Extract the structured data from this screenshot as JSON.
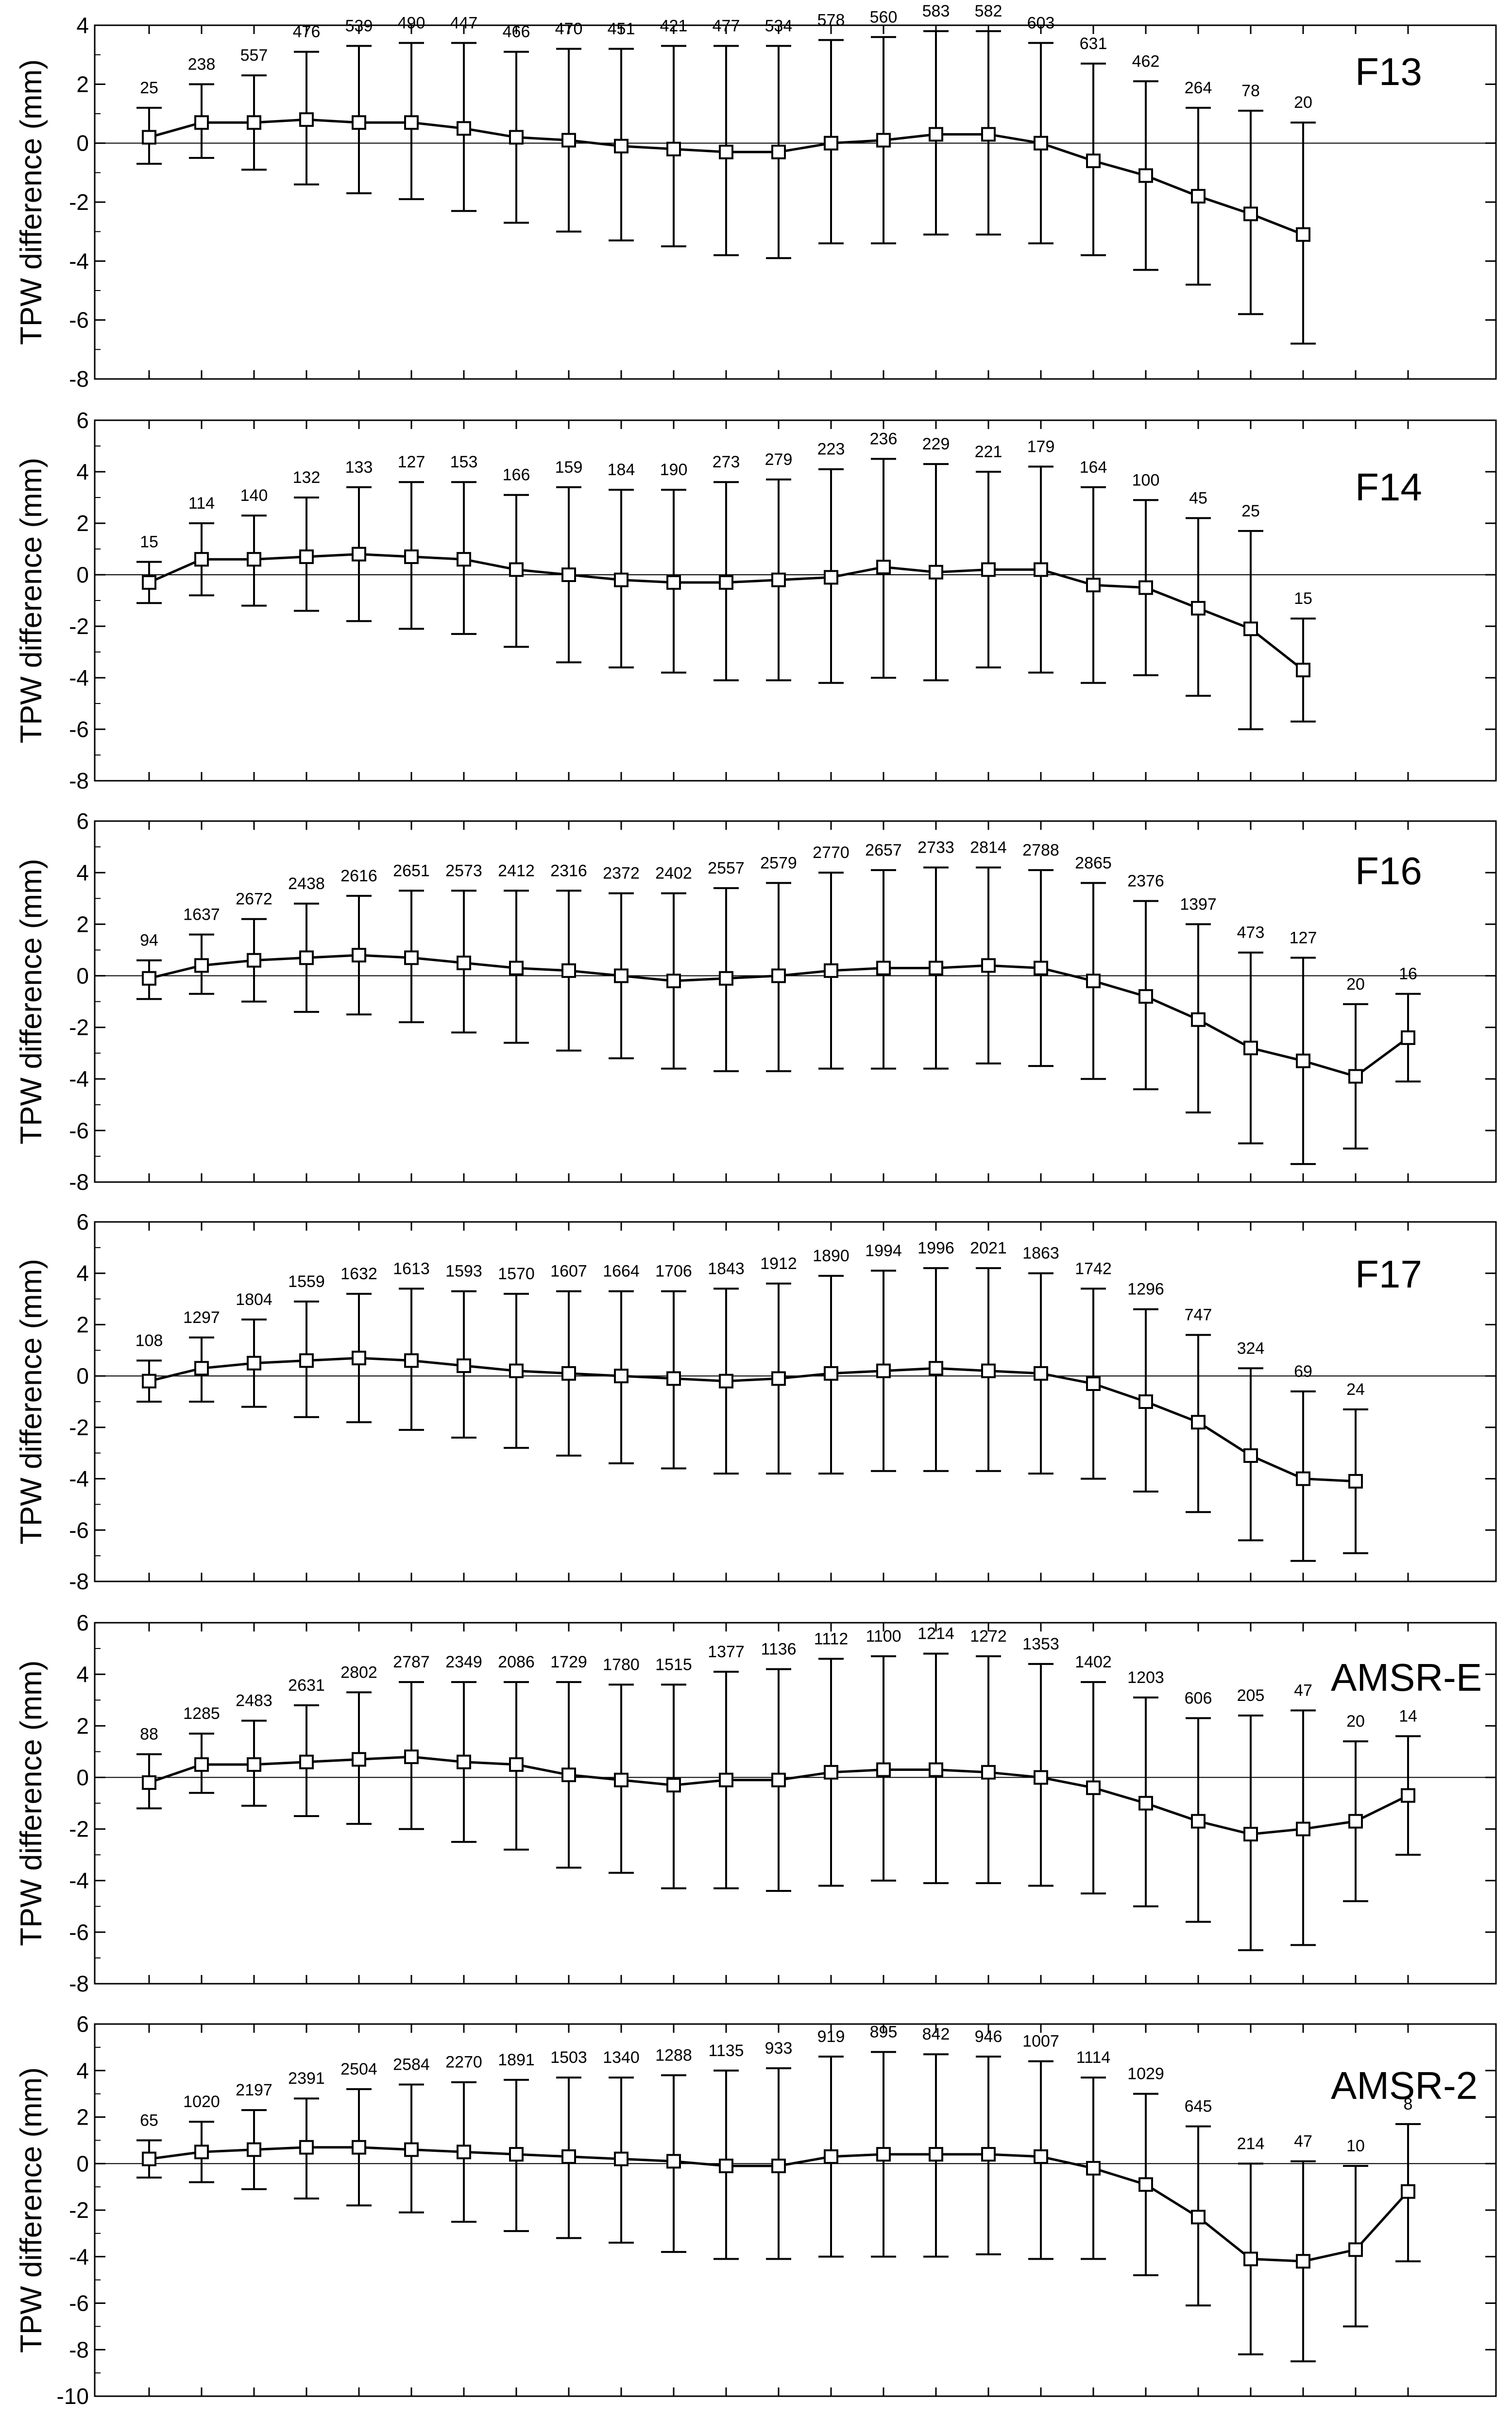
{
  "figure": {
    "ylabel": "TPW difference (mm)",
    "x_positions": [
      1,
      2,
      3,
      4,
      5,
      6,
      7,
      8,
      9,
      10,
      11,
      12,
      13,
      14,
      15,
      16,
      17,
      18,
      19,
      20,
      21,
      22,
      23,
      24,
      25
    ]
  },
  "chart_data": [
    {
      "type": "line",
      "title": "F13",
      "ylabel": "TPW difference (mm)",
      "ylim": [
        -8,
        4
      ],
      "yticks": [
        4,
        2,
        0,
        -2,
        -4,
        -6,
        -8
      ],
      "x": [
        1,
        2,
        3,
        4,
        5,
        6,
        7,
        8,
        9,
        10,
        11,
        12,
        13,
        14,
        15,
        16,
        17,
        18,
        19,
        20,
        21,
        22,
        23
      ],
      "values": [
        0.2,
        0.7,
        0.7,
        0.8,
        0.7,
        0.7,
        0.5,
        0.2,
        0.1,
        -0.1,
        -0.2,
        -0.3,
        -0.3,
        0.0,
        0.1,
        0.3,
        0.3,
        0.0,
        -0.6,
        -1.1,
        -1.8,
        -2.4,
        -3.1
      ],
      "lower": [
        -0.7,
        -0.5,
        -0.9,
        -1.4,
        -1.7,
        -1.9,
        -2.3,
        -2.7,
        -3.0,
        -3.3,
        -3.5,
        -3.8,
        -3.9,
        -3.4,
        -3.4,
        -3.1,
        -3.1,
        -3.4,
        -3.8,
        -4.3,
        -4.8,
        -5.8,
        -6.8
      ],
      "upper": [
        1.2,
        2.0,
        2.3,
        3.1,
        3.3,
        3.4,
        3.4,
        3.1,
        3.2,
        3.2,
        3.3,
        3.3,
        3.3,
        3.5,
        3.6,
        3.8,
        3.8,
        3.4,
        2.7,
        2.1,
        1.2,
        1.1,
        0.7
      ],
      "counts": [
        "25",
        "238",
        "557",
        "476",
        "539",
        "490",
        "447",
        "466",
        "470",
        "451",
        "421",
        "477",
        "534",
        "578",
        "560",
        "583",
        "582",
        "603",
        "631",
        "462",
        "264",
        "78",
        "20"
      ]
    },
    {
      "type": "line",
      "title": "F14",
      "ylabel": "TPW difference (mm)",
      "ylim": [
        -8,
        6
      ],
      "yticks": [
        6,
        4,
        2,
        0,
        -2,
        -4,
        -6,
        -8
      ],
      "x": [
        1,
        2,
        3,
        4,
        5,
        6,
        7,
        8,
        9,
        10,
        11,
        12,
        13,
        14,
        15,
        16,
        17,
        18,
        19,
        20,
        21,
        22,
        23
      ],
      "values": [
        -0.3,
        0.6,
        0.6,
        0.7,
        0.8,
        0.7,
        0.6,
        0.2,
        0.0,
        -0.2,
        -0.3,
        -0.3,
        -0.2,
        -0.1,
        0.3,
        0.1,
        0.2,
        0.2,
        -0.4,
        -0.5,
        -1.3,
        -2.1,
        -3.7
      ],
      "lower": [
        -1.1,
        -0.8,
        -1.2,
        -1.4,
        -1.8,
        -2.1,
        -2.3,
        -2.8,
        -3.4,
        -3.6,
        -3.8,
        -4.1,
        -4.1,
        -4.2,
        -4.0,
        -4.1,
        -3.6,
        -3.8,
        -4.2,
        -3.9,
        -4.7,
        -6.0,
        -5.7
      ],
      "upper": [
        0.5,
        2.0,
        2.3,
        3.0,
        3.4,
        3.6,
        3.6,
        3.1,
        3.4,
        3.3,
        3.3,
        3.6,
        3.7,
        4.1,
        4.5,
        4.3,
        4.0,
        4.2,
        3.4,
        2.9,
        2.2,
        1.7,
        -1.7
      ],
      "counts": [
        "15",
        "114",
        "140",
        "132",
        "133",
        "127",
        "153",
        "166",
        "159",
        "184",
        "190",
        "273",
        "279",
        "223",
        "236",
        "229",
        "221",
        "179",
        "164",
        "100",
        "45",
        "25",
        "15"
      ]
    },
    {
      "type": "line",
      "title": "F16",
      "ylabel": "TPW difference (mm)",
      "ylim": [
        -8,
        6
      ],
      "yticks": [
        6,
        4,
        2,
        0,
        -2,
        -4,
        -6,
        -8
      ],
      "x": [
        1,
        2,
        3,
        4,
        5,
        6,
        7,
        8,
        9,
        10,
        11,
        12,
        13,
        14,
        15,
        16,
        17,
        18,
        19,
        20,
        21,
        22,
        23,
        24,
        25
      ],
      "values": [
        -0.1,
        0.4,
        0.6,
        0.7,
        0.8,
        0.7,
        0.5,
        0.3,
        0.2,
        0.0,
        -0.2,
        -0.1,
        0.0,
        0.2,
        0.3,
        0.3,
        0.4,
        0.3,
        -0.2,
        -0.8,
        -1.7,
        -2.8,
        -3.3,
        -3.9,
        -2.4
      ],
      "lower": [
        -0.9,
        -0.7,
        -1.0,
        -1.4,
        -1.5,
        -1.8,
        -2.2,
        -2.6,
        -2.9,
        -3.2,
        -3.6,
        -3.7,
        -3.7,
        -3.6,
        -3.6,
        -3.6,
        -3.4,
        -3.5,
        -4.0,
        -4.4,
        -5.3,
        -6.5,
        -7.3,
        -6.7,
        -4.1
      ],
      "upper": [
        0.6,
        1.6,
        2.2,
        2.8,
        3.1,
        3.3,
        3.3,
        3.3,
        3.3,
        3.2,
        3.2,
        3.4,
        3.6,
        4.0,
        4.1,
        4.2,
        4.2,
        4.1,
        3.6,
        2.9,
        2.0,
        0.9,
        0.7,
        -1.1,
        -0.7
      ],
      "counts": [
        "94",
        "1637",
        "2672",
        "2438",
        "2616",
        "2651",
        "2573",
        "2412",
        "2316",
        "2372",
        "2402",
        "2557",
        "2579",
        "2770",
        "2657",
        "2733",
        "2814",
        "2788",
        "2865",
        "2376",
        "1397",
        "473",
        "127",
        "20",
        "16"
      ]
    },
    {
      "type": "line",
      "title": "F17",
      "ylabel": "TPW difference (mm)",
      "ylim": [
        -8,
        6
      ],
      "yticks": [
        6,
        4,
        2,
        0,
        -2,
        -4,
        -6,
        -8
      ],
      "x": [
        1,
        2,
        3,
        4,
        5,
        6,
        7,
        8,
        9,
        10,
        11,
        12,
        13,
        14,
        15,
        16,
        17,
        18,
        19,
        20,
        21,
        22,
        23,
        24
      ],
      "values": [
        -0.2,
        0.3,
        0.5,
        0.6,
        0.7,
        0.6,
        0.4,
        0.2,
        0.1,
        0.0,
        -0.1,
        -0.2,
        -0.1,
        0.1,
        0.2,
        0.3,
        0.2,
        0.1,
        -0.3,
        -1.0,
        -1.8,
        -3.1,
        -4.0,
        -4.1
      ],
      "lower": [
        -1.0,
        -1.0,
        -1.2,
        -1.6,
        -1.8,
        -2.1,
        -2.4,
        -2.8,
        -3.1,
        -3.4,
        -3.6,
        -3.8,
        -3.8,
        -3.8,
        -3.7,
        -3.7,
        -3.7,
        -3.8,
        -4.0,
        -4.5,
        -5.3,
        -6.4,
        -7.2,
        -6.9
      ],
      "upper": [
        0.6,
        1.5,
        2.2,
        2.9,
        3.2,
        3.4,
        3.3,
        3.2,
        3.3,
        3.3,
        3.3,
        3.4,
        3.6,
        3.9,
        4.1,
        4.2,
        4.2,
        4.0,
        3.4,
        2.6,
        1.6,
        0.3,
        -0.6,
        -1.3
      ],
      "counts": [
        "108",
        "1297",
        "1804",
        "1559",
        "1632",
        "1613",
        "1593",
        "1570",
        "1607",
        "1664",
        "1706",
        "1843",
        "1912",
        "1890",
        "1994",
        "1996",
        "2021",
        "1863",
        "1742",
        "1296",
        "747",
        "324",
        "69",
        "24"
      ]
    },
    {
      "type": "line",
      "title": "AMSR-E",
      "ylabel": "TPW difference (mm)",
      "ylim": [
        -8,
        6
      ],
      "yticks": [
        6,
        4,
        2,
        0,
        -2,
        -4,
        -6,
        -8
      ],
      "x": [
        1,
        2,
        3,
        4,
        5,
        6,
        7,
        8,
        9,
        10,
        11,
        12,
        13,
        14,
        15,
        16,
        17,
        18,
        19,
        20,
        21,
        22,
        23,
        24,
        25
      ],
      "values": [
        -0.2,
        0.5,
        0.5,
        0.6,
        0.7,
        0.8,
        0.6,
        0.5,
        0.1,
        -0.1,
        -0.3,
        -0.1,
        -0.1,
        0.2,
        0.3,
        0.3,
        0.2,
        0.0,
        -0.4,
        -1.0,
        -1.7,
        -2.2,
        -2.0,
        -1.7,
        -0.7
      ],
      "lower": [
        -1.2,
        -0.6,
        -1.1,
        -1.5,
        -1.8,
        -2.0,
        -2.5,
        -2.8,
        -3.5,
        -3.7,
        -4.3,
        -4.3,
        -4.4,
        -4.2,
        -4.0,
        -4.1,
        -4.1,
        -4.2,
        -4.5,
        -5.0,
        -5.6,
        -6.7,
        -6.5,
        -4.8,
        -3.0
      ],
      "upper": [
        0.9,
        1.7,
        2.2,
        2.8,
        3.3,
        3.7,
        3.7,
        3.7,
        3.7,
        3.6,
        3.6,
        4.1,
        4.2,
        4.6,
        4.7,
        4.8,
        4.7,
        4.4,
        3.7,
        3.1,
        2.3,
        2.4,
        2.6,
        1.4,
        1.6
      ],
      "counts": [
        "88",
        "1285",
        "2483",
        "2631",
        "2802",
        "2787",
        "2349",
        "2086",
        "1729",
        "1780",
        "1515",
        "1377",
        "1136",
        "1112",
        "1100",
        "1214",
        "1272",
        "1353",
        "1402",
        "1203",
        "606",
        "205",
        "47",
        "20",
        "14"
      ]
    },
    {
      "type": "line",
      "title": "AMSR-2",
      "ylabel": "TPW difference (mm)",
      "ylim": [
        -10,
        6
      ],
      "yticks": [
        6,
        4,
        2,
        0,
        -2,
        -4,
        -6,
        -8,
        -10
      ],
      "x": [
        1,
        2,
        3,
        4,
        5,
        6,
        7,
        8,
        9,
        10,
        11,
        12,
        13,
        14,
        15,
        16,
        17,
        18,
        19,
        20,
        21,
        22,
        23,
        24,
        25
      ],
      "values": [
        0.2,
        0.5,
        0.6,
        0.7,
        0.7,
        0.6,
        0.5,
        0.4,
        0.3,
        0.2,
        0.1,
        -0.1,
        -0.1,
        0.3,
        0.4,
        0.4,
        0.4,
        0.3,
        -0.2,
        -0.9,
        -2.3,
        -4.1,
        -4.2,
        -3.7,
        -1.2
      ],
      "lower": [
        -0.6,
        -0.8,
        -1.1,
        -1.5,
        -1.8,
        -2.1,
        -2.5,
        -2.9,
        -3.2,
        -3.4,
        -3.8,
        -4.1,
        -4.1,
        -4.0,
        -4.0,
        -4.0,
        -3.9,
        -4.1,
        -4.1,
        -4.8,
        -6.1,
        -8.2,
        -8.5,
        -7.0,
        -4.2
      ],
      "upper": [
        1.0,
        1.8,
        2.3,
        2.8,
        3.2,
        3.4,
        3.5,
        3.6,
        3.7,
        3.7,
        3.8,
        4.0,
        4.1,
        4.6,
        4.8,
        4.7,
        4.6,
        4.4,
        3.7,
        3.0,
        1.6,
        0.0,
        0.1,
        -0.1,
        1.7
      ],
      "counts": [
        "65",
        "1020",
        "2197",
        "2391",
        "2504",
        "2584",
        "2270",
        "1891",
        "1503",
        "1340",
        "1288",
        "1135",
        "933",
        "919",
        "895",
        "842",
        "946",
        "1007",
        "1114",
        "1029",
        "645",
        "214",
        "47",
        "10",
        "8"
      ]
    }
  ]
}
